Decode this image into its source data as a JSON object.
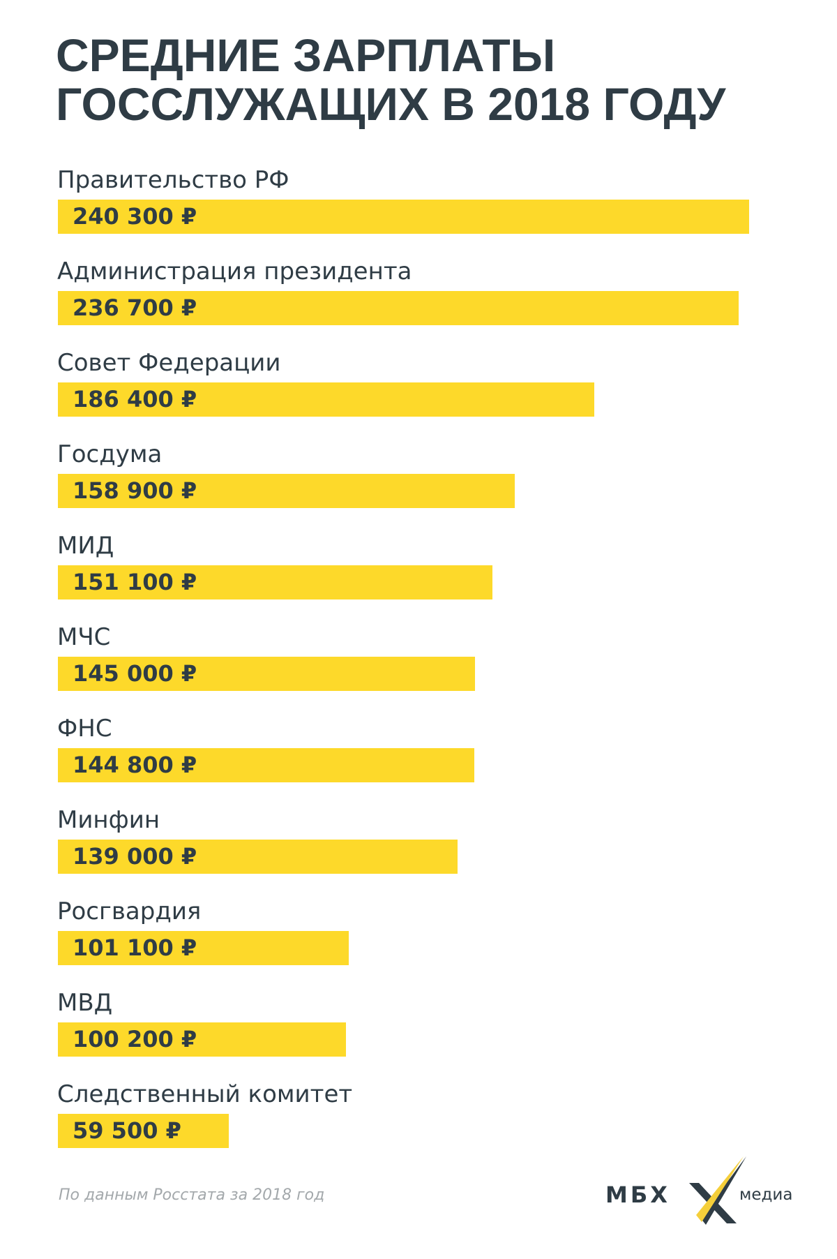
{
  "title": [
    "СРЕДНИЕ ЗАРПЛАТЫ",
    "ГОССЛУЖАЩИХ В 2018 ГОДУ"
  ],
  "chart_data": {
    "type": "bar",
    "orientation": "horizontal",
    "title": "СРЕДНИЕ ЗАРПЛАТЫ ГОССЛУЖАЩИХ В 2018 ГОДУ",
    "categories": [
      "Правительство РФ",
      "Администрация президента",
      "Совет Федерации",
      "Госдума",
      "МИД",
      "МЧС",
      "ФНС",
      "Минфин",
      "Росгвардия",
      "МВД",
      "Следственный комитет"
    ],
    "values": [
      240300,
      236700,
      186400,
      158900,
      151100,
      145000,
      144800,
      139000,
      101100,
      100200,
      59500
    ],
    "value_labels": [
      "240 300 ₽",
      "236 700 ₽",
      "186 400 ₽",
      "158 900 ₽",
      "151 100 ₽",
      "145 000 ₽",
      "144 800 ₽",
      "139 000 ₽",
      "101 100 ₽",
      "100 200 ₽",
      "59 500 ₽"
    ],
    "unit": "₽",
    "xlim": [
      0,
      240300
    ],
    "grid": false,
    "bar_color": "#fdd92a",
    "text_color": "#2f3c45"
  },
  "source": "По данным Росстата за 2018 год",
  "logo": {
    "text": "МБХ",
    "suffix": "медиа",
    "accent": "#f5cf3a"
  }
}
